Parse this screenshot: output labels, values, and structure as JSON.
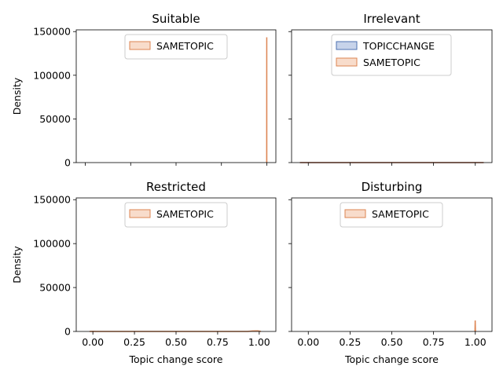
{
  "chart_data": [
    {
      "type": "area",
      "panel": "top-left",
      "title": "Suitable",
      "xlabel": "",
      "ylabel": "Density",
      "xlim": [
        -0.05,
        1.05
      ],
      "ylim": [
        0,
        152000
      ],
      "xticks": [
        0.0,
        0.25,
        0.5,
        0.75,
        1.0
      ],
      "xtick_labels": [],
      "yticks": [
        0,
        50000,
        100000,
        150000
      ],
      "ytick_labels": [
        "0",
        "50000",
        "100000",
        "150000"
      ],
      "legend": {
        "placement": "top-center",
        "entries": [
          "SAMETOPIC"
        ]
      },
      "series": [
        {
          "name": "SAMETOPIC",
          "color": "#dd8452",
          "x": [
            0.9995,
            0.99985,
            1.0
          ],
          "y": [
            0,
            143500,
            0
          ]
        }
      ]
    },
    {
      "type": "area",
      "panel": "top-right",
      "title": "Irrelevant",
      "xlabel": "",
      "ylabel": "",
      "xlim": [
        -0.1,
        1.1
      ],
      "ylim": [
        0,
        152000
      ],
      "xticks": [
        0.0,
        0.25,
        0.5,
        0.75,
        1.0
      ],
      "xtick_labels": [],
      "yticks": [
        0,
        50000,
        100000,
        150000
      ],
      "ytick_labels": [],
      "legend": {
        "placement": "top-center",
        "entries": [
          "TOPICCHANGE",
          "SAMETOPIC"
        ]
      },
      "series": [
        {
          "name": "TOPICCHANGE",
          "color": "#4c72b0",
          "x": [
            -0.05,
            1.05
          ],
          "y": [
            0,
            0
          ]
        },
        {
          "name": "SAMETOPIC",
          "color": "#dd8452",
          "x": [
            -0.05,
            1.05
          ],
          "y": [
            0,
            0
          ]
        }
      ]
    },
    {
      "type": "area",
      "panel": "bottom-left",
      "title": "Restricted",
      "xlabel": "Topic change score",
      "ylabel": "Density",
      "xlim": [
        -0.1,
        1.1
      ],
      "ylim": [
        0,
        152000
      ],
      "xticks": [
        0.0,
        0.25,
        0.5,
        0.75,
        1.0
      ],
      "xtick_labels": [
        "0.00",
        "0.25",
        "0.50",
        "0.75",
        "1.00"
      ],
      "yticks": [
        0,
        50000,
        100000,
        150000
      ],
      "ytick_labels": [
        "0",
        "50000",
        "100000",
        "150000"
      ],
      "legend": {
        "placement": "top-center",
        "entries": [
          "SAMETOPIC"
        ]
      },
      "series": [
        {
          "name": "SAMETOPIC",
          "color": "#dd8452",
          "x": [
            -0.02,
            0.0,
            0.02,
            0.93,
            0.96,
            0.99,
            1.0,
            1.01
          ],
          "y": [
            0,
            150,
            0,
            0,
            600,
            700,
            500,
            0
          ]
        }
      ]
    },
    {
      "type": "area",
      "panel": "bottom-right",
      "title": "Disturbing",
      "xlabel": "Topic change score",
      "ylabel": "",
      "xlim": [
        -0.1,
        1.1
      ],
      "ylim": [
        0,
        152000
      ],
      "xticks": [
        0.0,
        0.25,
        0.5,
        0.75,
        1.0
      ],
      "xtick_labels": [
        "0.00",
        "0.25",
        "0.50",
        "0.75",
        "1.00"
      ],
      "yticks": [
        0,
        50000,
        100000,
        150000
      ],
      "ytick_labels": [],
      "legend": {
        "placement": "top-center",
        "entries": [
          "SAMETOPIC"
        ]
      },
      "series": [
        {
          "name": "SAMETOPIC",
          "color": "#dd8452",
          "x": [
            0.998,
            0.9995,
            1.001
          ],
          "y": [
            0,
            12500,
            0
          ]
        }
      ]
    }
  ],
  "palette": {
    "TOPICCHANGE": {
      "edge": "#4c72b0",
      "fill": "#c7d3ea"
    },
    "SAMETOPIC": {
      "edge": "#dd8452",
      "fill": "#f8dccb"
    }
  }
}
